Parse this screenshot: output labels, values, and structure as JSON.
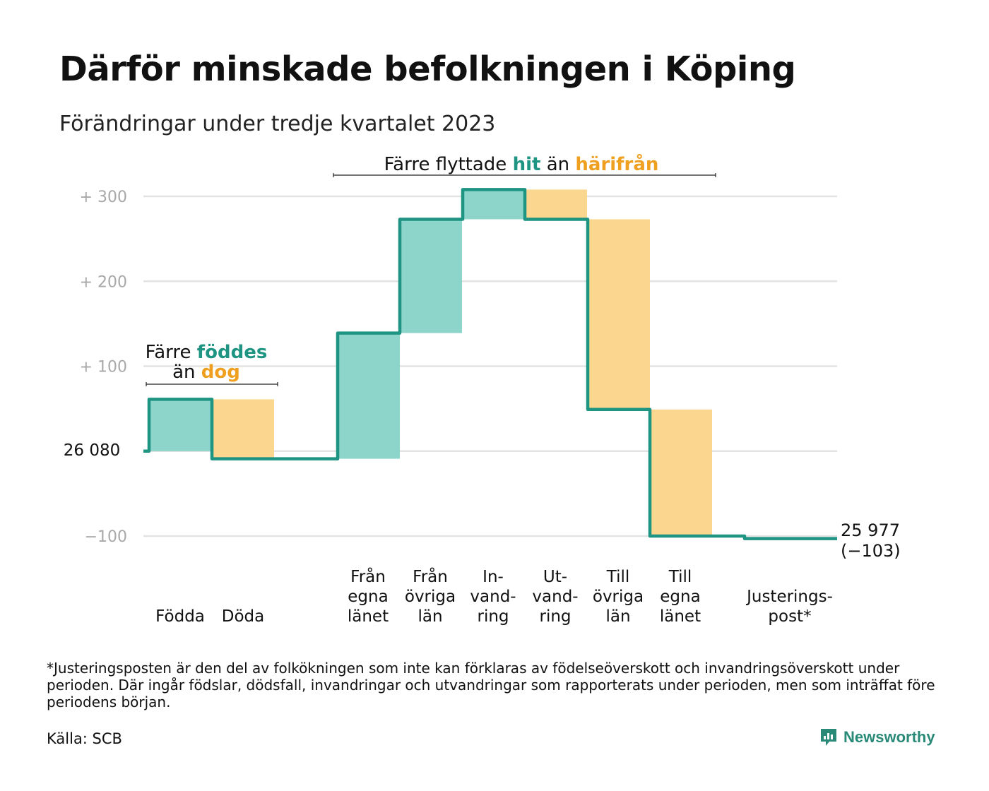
{
  "title": "Därför minskade befolkningen i Köping",
  "subtitle": "Förändringar under tredje kvartalet 2023",
  "colors": {
    "increase": "#8dd5cb",
    "decrease": "#fad68f",
    "line": "#1e9483",
    "grid": "#e3e3e3",
    "tick": "#a8a8a8",
    "teal_text": "#1e9483",
    "orange_text": "#f0a020"
  },
  "chart_data": {
    "type": "waterfall",
    "start_value": 26080,
    "start_label": "26  080",
    "end_label": "25 977",
    "end_change_label": "(−103)",
    "ylim": [
      -100,
      300
    ],
    "yticks": [
      {
        "value": 300,
        "label": "+  300"
      },
      {
        "value": 200,
        "label": "+  200"
      },
      {
        "value": 100,
        "label": "+  100"
      },
      {
        "value": -100,
        "label": "−100"
      }
    ],
    "steps": [
      {
        "label_lines": [
          "Födda"
        ],
        "change": 61,
        "kind": "increase"
      },
      {
        "label_lines": [
          "Döda"
        ],
        "change": -70,
        "kind": "decrease"
      },
      {
        "label_lines": [
          "Från",
          "egna",
          "länet"
        ],
        "change": 148,
        "kind": "increase"
      },
      {
        "label_lines": [
          "Från",
          "övriga",
          "län"
        ],
        "change": 134,
        "kind": "increase"
      },
      {
        "label_lines": [
          "In-",
          "vand-",
          "ring"
        ],
        "change": 35,
        "kind": "increase"
      },
      {
        "label_lines": [
          "Ut-",
          "vand-",
          "ring"
        ],
        "change": -35,
        "kind": "decrease"
      },
      {
        "label_lines": [
          "Till",
          "övriga",
          "län"
        ],
        "change": -224,
        "kind": "decrease"
      },
      {
        "label_lines": [
          "Till",
          "egna",
          "länet"
        ],
        "change": -149,
        "kind": "decrease"
      },
      {
        "label_lines": [
          "Justerings-",
          "post*"
        ],
        "change": -3,
        "kind": "adjustment"
      }
    ],
    "annotations": {
      "births_deaths": {
        "line1_a": "Färre ",
        "line1_b": "föddes",
        "line2_a": "än ",
        "line2_b": "dog"
      },
      "migration": {
        "a": "Färre flyttade ",
        "b": "hit",
        "c": " än ",
        "d": "härifrån"
      }
    }
  },
  "footnote": "*Justeringsposten är den del av folkökningen som inte kan förklaras av födelseöverskott och invandringsöverskott under perioden. Där ingår födslar, dödsfall, invandringar och utvandringar som rapporterats under perioden, men som inträffat före periodens början.",
  "source": "Källa: SCB",
  "logo": {
    "text": "Newsworthy",
    "icon": "newsworthy-logo-icon"
  }
}
